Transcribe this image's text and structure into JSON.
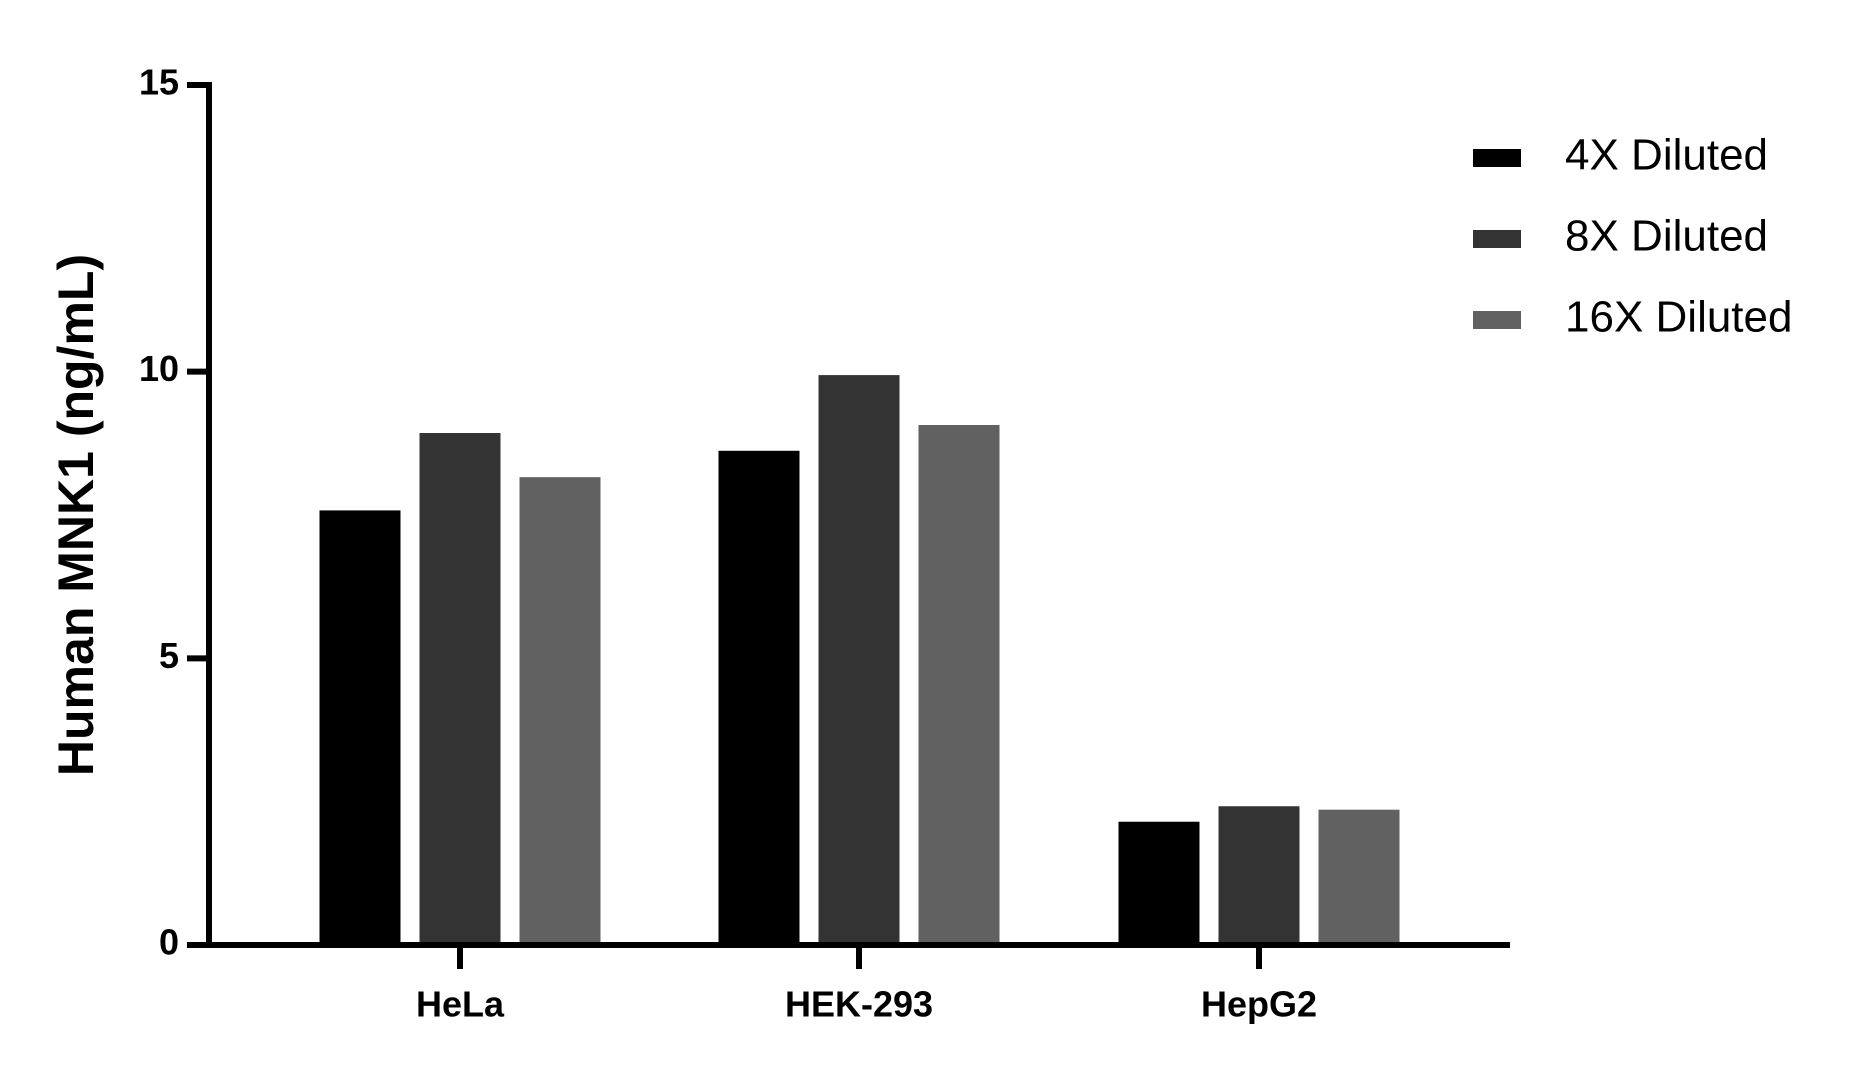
{
  "chart_data": {
    "type": "bar",
    "ylabel": "Human MNK1  (ng/mL)",
    "categories": [
      "HeLa",
      "HEK-293",
      "HepG2"
    ],
    "series": [
      {
        "name": "4X Diluted",
        "color": "#000000",
        "values": [
          7.58,
          8.62,
          2.15
        ]
      },
      {
        "name": "8X Diluted",
        "color": "#333333",
        "values": [
          8.93,
          9.94,
          2.42
        ]
      },
      {
        "name": "16X Diluted",
        "color": "#616161",
        "values": [
          8.16,
          9.07,
          2.36
        ]
      }
    ],
    "ylim": [
      0,
      15
    ],
    "yticks": [
      0,
      5,
      10,
      15
    ],
    "legend": "upper right"
  }
}
